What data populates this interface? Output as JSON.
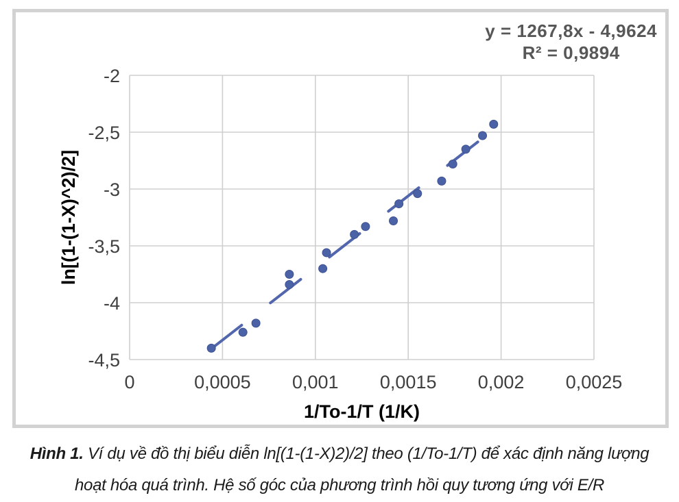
{
  "figure": {
    "equation_line1": "y = 1267,8x - 4,9624",
    "equation_line2": "R² = 0,9894"
  },
  "caption": {
    "label": "Hình 1.",
    "line1_rest": " Ví dụ về đồ thị biểu diễn ln[(1-(1-X)2)/2] theo (1/To-1/T) để xác định năng lượng",
    "line2": "hoạt hóa quá trình. Hệ số góc của phương trình hồi quy tương ứng với E/R"
  },
  "chart_data": {
    "type": "scatter",
    "title": "",
    "xlabel": "1/To-1/T (1/K)",
    "ylabel": "ln[(1-(1-X)^2)/2]",
    "xlim": [
      0,
      0.0025
    ],
    "ylim": [
      -4.5,
      -2
    ],
    "grid": true,
    "legend": "none",
    "x_ticks": [
      "0",
      "0,0005",
      "0,001",
      "0,0015",
      "0,002",
      "0,0025"
    ],
    "x_tick_values": [
      0,
      0.0005,
      0.001,
      0.0015,
      0.002,
      0.0025
    ],
    "y_ticks": [
      "-2",
      "-2,5",
      "-3",
      "-3,5",
      "-4",
      "-4,5"
    ],
    "y_tick_values": [
      -2,
      -2.5,
      -3,
      -3.5,
      -4,
      -4.5
    ],
    "points": [
      [
        0.00044,
        -4.4
      ],
      [
        0.00061,
        -4.26
      ],
      [
        0.00068,
        -4.18
      ],
      [
        0.00086,
        -3.75
      ],
      [
        0.00086,
        -3.84
      ],
      [
        0.00104,
        -3.7
      ],
      [
        0.00106,
        -3.56
      ],
      [
        0.00121,
        -3.4
      ],
      [
        0.00127,
        -3.33
      ],
      [
        0.00142,
        -3.28
      ],
      [
        0.00145,
        -3.13
      ],
      [
        0.00155,
        -3.04
      ],
      [
        0.00168,
        -2.93
      ],
      [
        0.00174,
        -2.78
      ],
      [
        0.00181,
        -2.65
      ],
      [
        0.0019,
        -2.53
      ],
      [
        0.00196,
        -2.43
      ]
    ],
    "trendline": {
      "slope": 1267.8,
      "intercept": -4.9624,
      "x_start": 0.00044,
      "x_end": 0.00197,
      "style": "dashed",
      "equation": "y = 1267,8x - 4,9624",
      "r_squared": "R² = 0,9894"
    },
    "colors": {
      "point_fill": "#4b62a7",
      "point_stroke": "#3e5291",
      "trend": "#5266ad",
      "grid": "#cfcfcf",
      "tick_text": "#3f3f3f",
      "axis_title_text": "#000000",
      "equation_text": "#575757",
      "frame": "#d2d2d2"
    }
  }
}
